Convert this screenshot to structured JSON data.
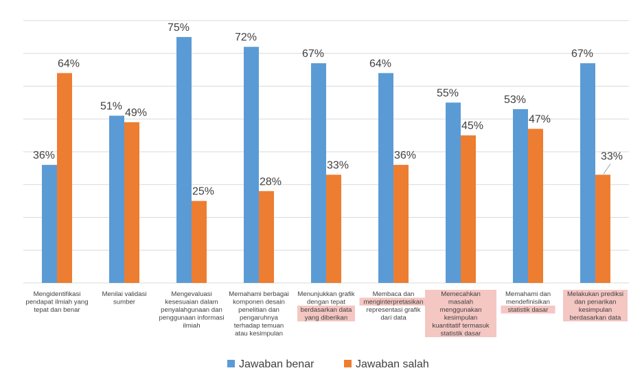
{
  "chart_data": {
    "type": "bar",
    "categories": [
      [
        "Mengidentifikasi",
        "pendapat ilmiah yang",
        "tepat dan benar"
      ],
      [
        "Menilai validasi",
        "sumber"
      ],
      [
        "Mengevaluasi",
        "kesesuaian dalam",
        "penyalahgunaan dan",
        "penggunaan informasi",
        "ilmiah"
      ],
      [
        "Memahami berbagai",
        "komponen desain",
        "penelitian dan",
        "pengaruhnya",
        "terhadap temuan",
        "atau kesimpulan"
      ],
      [
        "Menunjukkan grafik",
        "dengan tepat",
        "berdasarkan data",
        "yang diberikan"
      ],
      [
        "Membaca dan",
        "menginterpretasikan",
        "representasi grafik",
        "dari data"
      ],
      [
        "Memecahkan",
        "masalah",
        "menggunakan",
        "kesimpulan",
        "kuantitatif termasuk",
        "statistik dasar"
      ],
      [
        "Memahami dan",
        "mendefinisikan",
        "statistik dasar"
      ],
      [
        "Melakukan prediksi",
        "dan penarikan",
        "kesimpulan",
        "berdasarkan data"
      ]
    ],
    "series": [
      {
        "name": "Jawaban benar",
        "values": [
          36,
          51,
          75,
          72,
          67,
          64,
          55,
          53,
          67
        ],
        "labels": [
          "36%",
          "51%",
          "75%",
          "72%",
          "67%",
          "64%",
          "55%",
          "53%",
          "67%"
        ],
        "color": "#5B9BD5"
      },
      {
        "name": "Jawaban salah",
        "values": [
          64,
          49,
          25,
          28,
          33,
          36,
          45,
          47,
          33
        ],
        "labels": [
          "64%",
          "49%",
          "25%",
          "28%",
          "33%",
          "36%",
          "45%",
          "47%",
          "33%"
        ],
        "color": "#ED7D31"
      }
    ],
    "ylim": [
      0,
      80
    ],
    "grid": true,
    "legend": "bottom",
    "gridline_color": "#D9D9D9",
    "highlight_color": "#F4C7C3"
  }
}
